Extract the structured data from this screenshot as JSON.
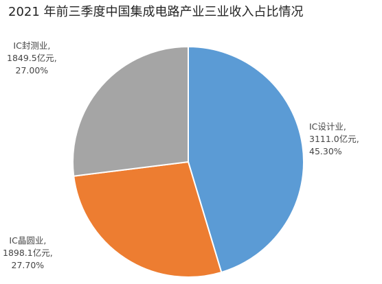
{
  "chart_data": {
    "type": "pie",
    "title": "2021 年前三季度中国集成电路产业三业收入占比情况",
    "slices": [
      {
        "name": "IC设计业",
        "value": 3111.0,
        "value_label": "3111.0亿元,",
        "percent_label": "45.30%",
        "label_prefix": "IC设计业,",
        "color": "#5b9bd5"
      },
      {
        "name": "IC晶圆业",
        "value": 1898.1,
        "value_label": "1898.1亿元,",
        "percent_label": "27.70%",
        "label_prefix": "IC晶圆业,",
        "color": "#ed7d31"
      },
      {
        "name": "IC封测业",
        "value": 1849.5,
        "value_label": "1849.5亿元,",
        "percent_label": "27.00%",
        "label_prefix": "IC封测业,",
        "color": "#a5a5a5"
      }
    ],
    "start_angle": "12 o'clock",
    "direction": "clockwise",
    "legend": "none"
  }
}
